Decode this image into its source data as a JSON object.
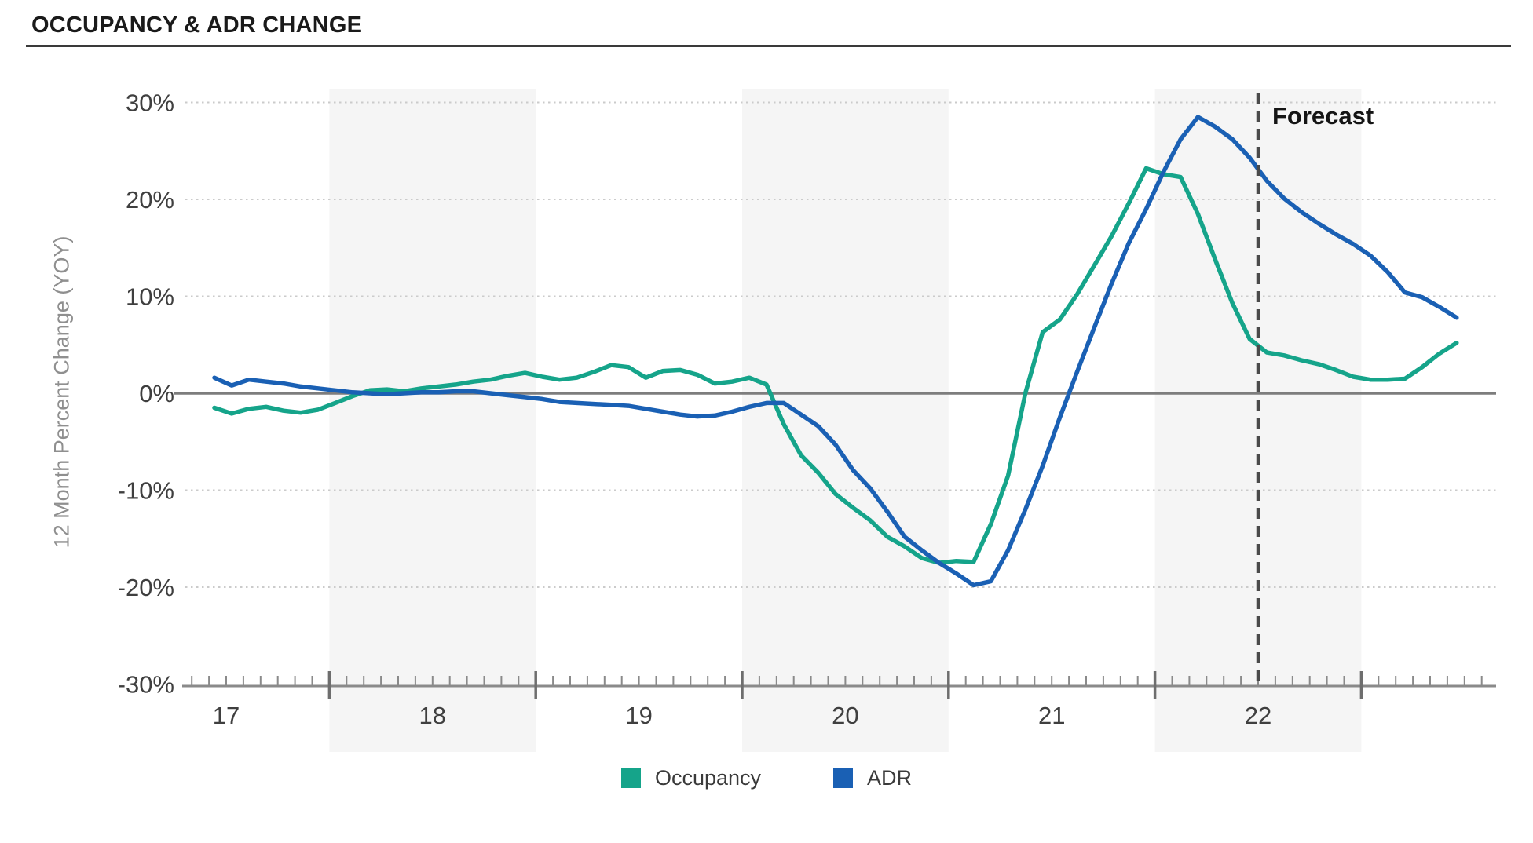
{
  "header": {
    "title": "OCCUPANCY & ADR CHANGE"
  },
  "forecast": {
    "label": "Forecast"
  },
  "legend": {
    "items": [
      {
        "label": "Occupancy",
        "color": "#15A48A"
      },
      {
        "label": "ADR",
        "color": "#1A60B4"
      }
    ]
  },
  "colors": {
    "occupancy": "#15A48A",
    "adr": "#1A60B4",
    "grid_dotted": "#cbcbcb",
    "zero_line": "#7d7d7d",
    "axis_line": "#8a8a8a",
    "tick": "#8a8a8a",
    "tick_label": "#3f3f3f",
    "band": "#f5f5f5",
    "forecast_line": "#4a4a4a"
  },
  "chart_data": {
    "type": "line",
    "title": "OCCUPANCY & ADR CHANGE",
    "ylabel": "12 Month Percent Change (YOY)",
    "xlabel": "",
    "x_interval": "monthly",
    "x_start": "2016-12",
    "x_end": "2022-12",
    "x_tick_labels": [
      "17",
      "18",
      "19",
      "20",
      "21",
      "22"
    ],
    "x_tick_years": [
      17,
      18,
      19,
      20,
      21,
      22
    ],
    "ylim": [
      -30,
      30
    ],
    "y_tick_values": [
      30,
      20,
      10,
      0,
      -10,
      -20,
      -30
    ],
    "y_tick_labels": [
      "30%",
      "20%",
      "10%",
      "0%",
      "-10%",
      "-20%",
      "-30%"
    ],
    "grid": "horizontal dotted, solid zero line",
    "legend_position": "bottom",
    "forecast_label": "Forecast",
    "forecast_divider_year": 22.0,
    "shaded_year_bands": [
      [
        17.5,
        18.5
      ],
      [
        19.5,
        20.5
      ],
      [
        21.5,
        22.5
      ]
    ],
    "series": [
      {
        "name": "Occupancy",
        "color": "#15A48A",
        "values": [
          -1.5,
          -2.1,
          -1.6,
          -1.4,
          -1.8,
          -2.0,
          -1.7,
          -1.0,
          -0.3,
          0.3,
          0.4,
          0.2,
          0.5,
          0.7,
          0.9,
          1.2,
          1.4,
          1.8,
          2.1,
          1.7,
          1.4,
          1.6,
          2.2,
          2.9,
          2.7,
          1.6,
          2.3,
          2.4,
          1.9,
          1.0,
          1.2,
          1.6,
          0.9,
          -3.2,
          -6.4,
          -8.2,
          -10.4,
          -11.8,
          -13.1,
          -14.8,
          -15.8,
          -17.0,
          -17.5,
          -17.3,
          -17.4,
          -13.5,
          -8.5,
          0.0,
          6.3,
          7.6,
          10.2,
          13.2,
          16.2,
          19.6,
          23.2,
          22.6,
          22.3,
          18.5,
          13.8,
          9.3,
          5.6,
          4.2,
          3.9,
          3.4,
          3.0,
          2.4,
          1.7,
          1.4,
          1.4,
          1.5,
          2.7,
          4.1,
          5.2
        ]
      },
      {
        "name": "ADR",
        "color": "#1A60B4",
        "values": [
          1.6,
          0.8,
          1.4,
          1.2,
          1.0,
          0.7,
          0.5,
          0.3,
          0.1,
          0.0,
          -0.1,
          0.0,
          0.1,
          0.1,
          0.2,
          0.2,
          0.0,
          -0.2,
          -0.4,
          -0.6,
          -0.9,
          -1.0,
          -1.1,
          -1.2,
          -1.3,
          -1.6,
          -1.9,
          -2.2,
          -2.4,
          -2.3,
          -1.9,
          -1.4,
          -1.0,
          -1.0,
          -2.2,
          -3.4,
          -5.3,
          -7.9,
          -9.8,
          -12.2,
          -14.8,
          -16.2,
          -17.5,
          -18.6,
          -19.8,
          -19.4,
          -16.2,
          -12.0,
          -7.5,
          -2.5,
          2.2,
          6.8,
          11.3,
          15.5,
          19.0,
          22.8,
          26.2,
          28.5,
          27.5,
          26.2,
          24.3,
          21.9,
          20.1,
          18.7,
          17.5,
          16.4,
          15.4,
          14.2,
          12.5,
          10.4,
          9.9,
          8.9,
          7.8
        ]
      }
    ]
  }
}
